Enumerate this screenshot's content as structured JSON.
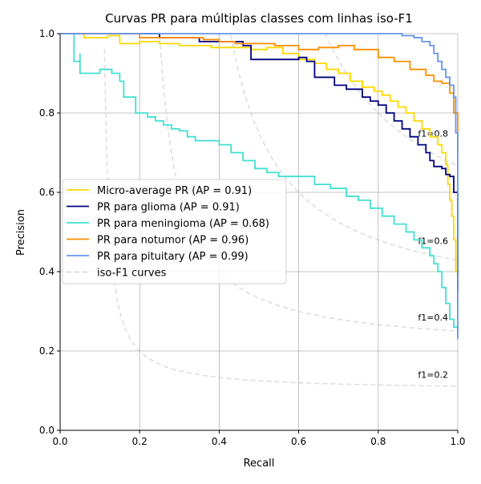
{
  "chart_data": {
    "type": "line",
    "title": "Curvas PR para múltiplas classes com linhas iso-F1",
    "xlabel": "Recall",
    "ylabel": "Precision",
    "xlim": [
      0.0,
      1.0
    ],
    "ylim": [
      0.0,
      1.0
    ],
    "grid": true,
    "legend_position": "center-left",
    "x_ticks": [
      "0.0",
      "0.2",
      "0.4",
      "0.6",
      "0.8",
      "1.0"
    ],
    "y_ticks": [
      "0.0",
      "0.2",
      "0.4",
      "0.6",
      "0.8",
      "1.0"
    ],
    "iso_f1": {
      "legend_label": "iso-F1 curves",
      "color": "#c8c8c8",
      "values": [
        0.2,
        0.4,
        0.6,
        0.8
      ],
      "labels": [
        "f1=0.2",
        "f1=0.4",
        "f1=0.6",
        "f1=0.8"
      ]
    },
    "series": [
      {
        "name": "Micro-average PR (AP = 0.91)",
        "color": "#ffd700",
        "points": [
          [
            0.0,
            1.0
          ],
          [
            0.06,
            1.0
          ],
          [
            0.06,
            0.99
          ],
          [
            0.12,
            0.995
          ],
          [
            0.15,
            0.975
          ],
          [
            0.2,
            0.98
          ],
          [
            0.25,
            0.975
          ],
          [
            0.3,
            0.97
          ],
          [
            0.38,
            0.965
          ],
          [
            0.44,
            0.965
          ],
          [
            0.48,
            0.96
          ],
          [
            0.52,
            0.965
          ],
          [
            0.56,
            0.95
          ],
          [
            0.6,
            0.935
          ],
          [
            0.64,
            0.925
          ],
          [
            0.67,
            0.91
          ],
          [
            0.7,
            0.9
          ],
          [
            0.73,
            0.88
          ],
          [
            0.76,
            0.865
          ],
          [
            0.79,
            0.855
          ],
          [
            0.81,
            0.845
          ],
          [
            0.83,
            0.83
          ],
          [
            0.85,
            0.815
          ],
          [
            0.87,
            0.8
          ],
          [
            0.89,
            0.78
          ],
          [
            0.91,
            0.76
          ],
          [
            0.93,
            0.74
          ],
          [
            0.95,
            0.72
          ],
          [
            0.96,
            0.7
          ],
          [
            0.97,
            0.67
          ],
          [
            0.975,
            0.62
          ],
          [
            0.98,
            0.58
          ],
          [
            0.985,
            0.54
          ],
          [
            0.99,
            0.48
          ],
          [
            0.995,
            0.4
          ],
          [
            1.0,
            0.3
          ]
        ]
      },
      {
        "name": "PR para glioma (AP = 0.91)",
        "color": "#000080",
        "points": [
          [
            0.0,
            1.0
          ],
          [
            0.25,
            1.0
          ],
          [
            0.25,
            0.99
          ],
          [
            0.35,
            0.99
          ],
          [
            0.35,
            0.98
          ],
          [
            0.4,
            0.98
          ],
          [
            0.46,
            0.97
          ],
          [
            0.48,
            0.96
          ],
          [
            0.48,
            0.935
          ],
          [
            0.55,
            0.935
          ],
          [
            0.6,
            0.94
          ],
          [
            0.62,
            0.93
          ],
          [
            0.64,
            0.91
          ],
          [
            0.64,
            0.89
          ],
          [
            0.69,
            0.885
          ],
          [
            0.69,
            0.87
          ],
          [
            0.72,
            0.86
          ],
          [
            0.76,
            0.84
          ],
          [
            0.78,
            0.83
          ],
          [
            0.8,
            0.82
          ],
          [
            0.82,
            0.8
          ],
          [
            0.84,
            0.78
          ],
          [
            0.86,
            0.76
          ],
          [
            0.88,
            0.74
          ],
          [
            0.9,
            0.72
          ],
          [
            0.92,
            0.7
          ],
          [
            0.93,
            0.68
          ],
          [
            0.94,
            0.665
          ],
          [
            0.96,
            0.66
          ],
          [
            0.97,
            0.645
          ],
          [
            0.98,
            0.64
          ],
          [
            0.99,
            0.62
          ],
          [
            0.99,
            0.6
          ],
          [
            1.0,
            0.57
          ],
          [
            1.0,
            0.35
          ]
        ]
      },
      {
        "name": "PR para meningioma (AP = 0.68)",
        "color": "#40e0d0",
        "points": [
          [
            0.0,
            1.0
          ],
          [
            0.035,
            1.0
          ],
          [
            0.035,
            0.93
          ],
          [
            0.05,
            0.95
          ],
          [
            0.05,
            0.9
          ],
          [
            0.07,
            0.9
          ],
          [
            0.1,
            0.91
          ],
          [
            0.13,
            0.9
          ],
          [
            0.15,
            0.88
          ],
          [
            0.16,
            0.84
          ],
          [
            0.18,
            0.84
          ],
          [
            0.19,
            0.8
          ],
          [
            0.22,
            0.79
          ],
          [
            0.24,
            0.78
          ],
          [
            0.26,
            0.77
          ],
          [
            0.28,
            0.76
          ],
          [
            0.3,
            0.755
          ],
          [
            0.32,
            0.74
          ],
          [
            0.34,
            0.73
          ],
          [
            0.37,
            0.73
          ],
          [
            0.4,
            0.72
          ],
          [
            0.43,
            0.7
          ],
          [
            0.46,
            0.68
          ],
          [
            0.49,
            0.66
          ],
          [
            0.52,
            0.65
          ],
          [
            0.55,
            0.64
          ],
          [
            0.6,
            0.64
          ],
          [
            0.64,
            0.62
          ],
          [
            0.68,
            0.61
          ],
          [
            0.72,
            0.59
          ],
          [
            0.75,
            0.58
          ],
          [
            0.78,
            0.56
          ],
          [
            0.81,
            0.54
          ],
          [
            0.84,
            0.52
          ],
          [
            0.87,
            0.5
          ],
          [
            0.89,
            0.48
          ],
          [
            0.91,
            0.46
          ],
          [
            0.93,
            0.44
          ],
          [
            0.94,
            0.42
          ],
          [
            0.95,
            0.4
          ],
          [
            0.96,
            0.36
          ],
          [
            0.97,
            0.32
          ],
          [
            0.98,
            0.28
          ],
          [
            0.99,
            0.26
          ],
          [
            1.0,
            0.25
          ]
        ]
      },
      {
        "name": "PR para notumor (AP = 0.96)",
        "color": "#ff8c00",
        "points": [
          [
            0.0,
            1.0
          ],
          [
            0.2,
            1.0
          ],
          [
            0.2,
            0.99
          ],
          [
            0.3,
            0.99
          ],
          [
            0.36,
            0.985
          ],
          [
            0.4,
            0.98
          ],
          [
            0.44,
            0.975
          ],
          [
            0.5,
            0.975
          ],
          [
            0.54,
            0.97
          ],
          [
            0.6,
            0.96
          ],
          [
            0.65,
            0.965
          ],
          [
            0.7,
            0.97
          ],
          [
            0.74,
            0.96
          ],
          [
            0.8,
            0.94
          ],
          [
            0.84,
            0.93
          ],
          [
            0.88,
            0.91
          ],
          [
            0.92,
            0.895
          ],
          [
            0.94,
            0.88
          ],
          [
            0.96,
            0.875
          ],
          [
            0.98,
            0.87
          ],
          [
            0.98,
            0.85
          ],
          [
            0.99,
            0.84
          ],
          [
            0.99,
            0.8
          ],
          [
            1.0,
            0.76
          ],
          [
            1.0,
            0.7
          ]
        ]
      },
      {
        "name": "PR para pituitary (AP = 0.99)",
        "color": "#6495ed",
        "points": [
          [
            0.0,
            1.0
          ],
          [
            0.8,
            1.0
          ],
          [
            0.86,
            0.995
          ],
          [
            0.89,
            0.99
          ],
          [
            0.91,
            0.98
          ],
          [
            0.93,
            0.97
          ],
          [
            0.94,
            0.95
          ],
          [
            0.95,
            0.93
          ],
          [
            0.96,
            0.91
          ],
          [
            0.97,
            0.89
          ],
          [
            0.98,
            0.87
          ],
          [
            0.99,
            0.84
          ],
          [
            0.995,
            0.75
          ],
          [
            1.0,
            0.6
          ],
          [
            1.0,
            0.23
          ]
        ]
      }
    ]
  }
}
